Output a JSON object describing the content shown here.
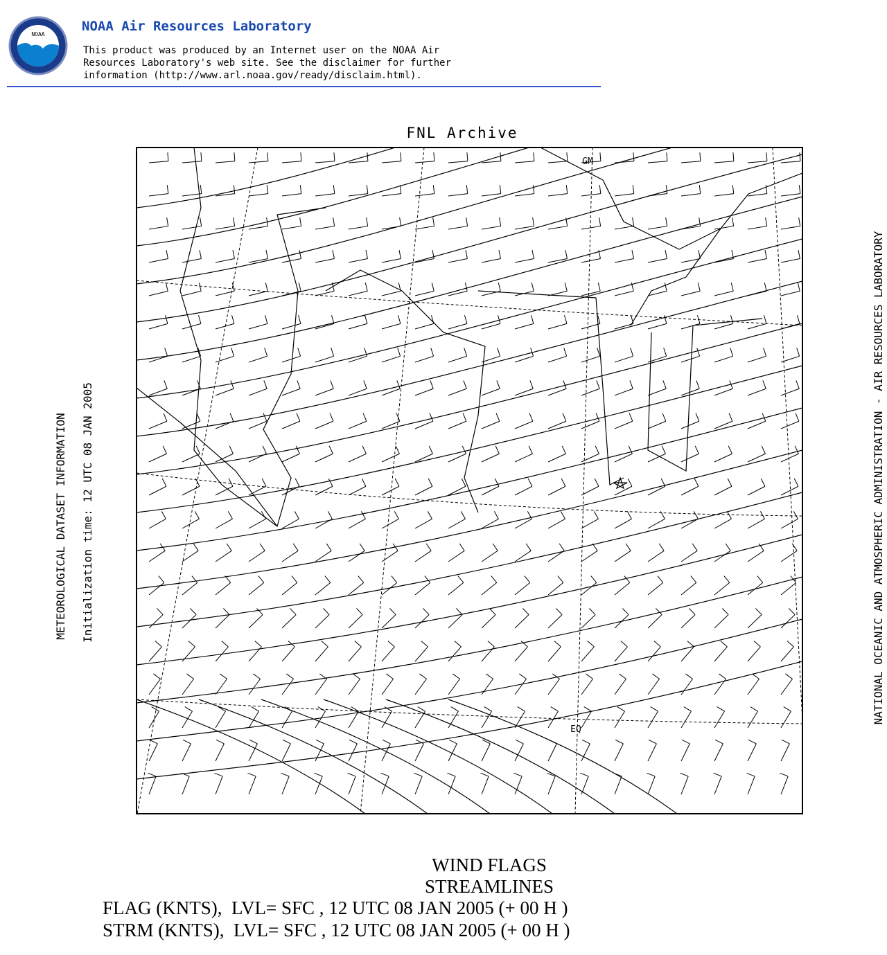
{
  "header": {
    "logo_text": "NOAA",
    "title": "NOAA Air Resources Laboratory",
    "disclaimer": [
      "This product was produced by an Internet user on the NOAA Air",
      "Resources Laboratory's web site.  See the disclaimer for further",
      "information (http://www.arl.noaa.gov/ready/disclaim.html)."
    ]
  },
  "map": {
    "title": "FNL Archive",
    "left_labels": [
      "METEOROLOGICAL DATASET INFORMATION",
      "Initialization time: 12 UTC 08 JAN 2005"
    ],
    "right_label": "NATIONAL OCEANIC AND ATMOSPHERIC ADMINISTRATION - AIR RESOURCES LABORATORY",
    "grid_labels": [
      "GM",
      "EQ"
    ]
  },
  "footer": {
    "lines": [
      "WIND FLAGS",
      "STREAMLINES",
      "FLAG (KNTS),  LVL= SFC , 12 UTC 08 JAN 2005 (+ 00 H )",
      "STRM (KNTS),  LVL= SFC , 12 UTC 08 JAN 2005 (+ 00 H )"
    ]
  }
}
